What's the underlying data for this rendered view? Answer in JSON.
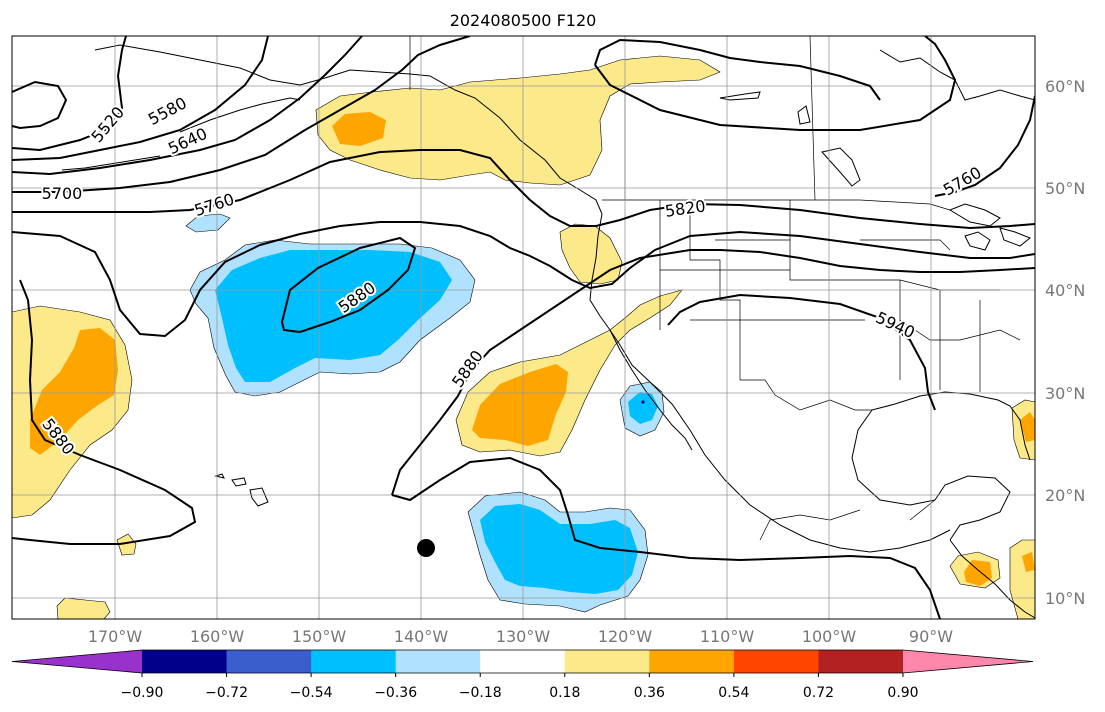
{
  "title": "2024080500 F120",
  "lat_labels": [
    "60°N",
    "50°N",
    "40°N",
    "30°N",
    "20°N",
    "10°N"
  ],
  "lon_labels": [
    "170°W",
    "160°W",
    "150°W",
    "140°W",
    "130°W",
    "120°W",
    "110°W",
    "100°W",
    "90°W"
  ],
  "contour_labels": [
    "5520",
    "5580",
    "5640",
    "5700",
    "5760",
    "5880",
    "5880",
    "5880",
    "5820",
    "5940",
    "5760"
  ],
  "colorbar": {
    "ticks": [
      "−0.90",
      "−0.72",
      "−0.54",
      "−0.36",
      "−0.18",
      "0.18",
      "0.36",
      "0.54",
      "0.72",
      "0.90"
    ],
    "colors": [
      "#9932cc",
      "#00008b",
      "#3a5fcd",
      "#00bfff",
      "#b0e2ff",
      "#ffffff",
      "#fbe98a",
      "#ffa500",
      "#ff4500",
      "#b22222",
      "#ff87ab"
    ]
  },
  "marker": "storm-center-dot"
}
